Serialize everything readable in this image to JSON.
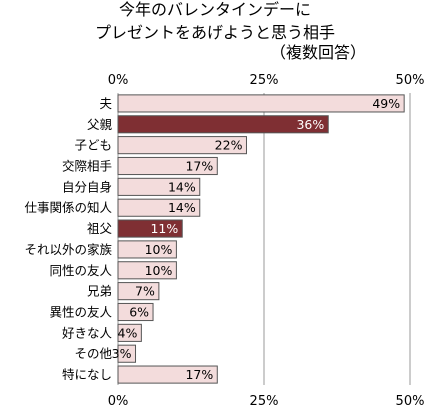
{
  "chart_data": {
    "type": "bar",
    "orientation": "horizontal",
    "title_lines": [
      "今年のバレンタインデーに",
      "プレゼントをあげようと思う相手"
    ],
    "subtitle": "（複数回答）",
    "categories": [
      "夫",
      "父親",
      "子ども",
      "交際相手",
      "自分自身",
      "仕事関係の知人",
      "祖父",
      "それ以外の家族",
      "同性の友人",
      "兄弟",
      "異性の友人",
      "好きな人",
      "その他",
      "特になし"
    ],
    "values": [
      49,
      36,
      22,
      17,
      14,
      14,
      11,
      10,
      10,
      7,
      6,
      4,
      3,
      17
    ],
    "value_labels": [
      "49%",
      "36%",
      "22%",
      "17%",
      "14%",
      "14%",
      "11%",
      "10%",
      "10%",
      "7%",
      "6%",
      "4%",
      "3%",
      "17%"
    ],
    "highlighted": [
      false,
      true,
      false,
      false,
      false,
      false,
      true,
      false,
      false,
      false,
      false,
      false,
      false,
      false
    ],
    "xlim": [
      0,
      50
    ],
    "x_ticks": [
      0,
      25,
      50
    ],
    "x_tick_labels": [
      "0%",
      "25%",
      "50%"
    ],
    "grid": "vertical",
    "colors": {
      "bar": "#f3dcdc",
      "bar_highlight": "#7f2f33",
      "bar_border": "#555555",
      "grid": "#999999"
    }
  }
}
